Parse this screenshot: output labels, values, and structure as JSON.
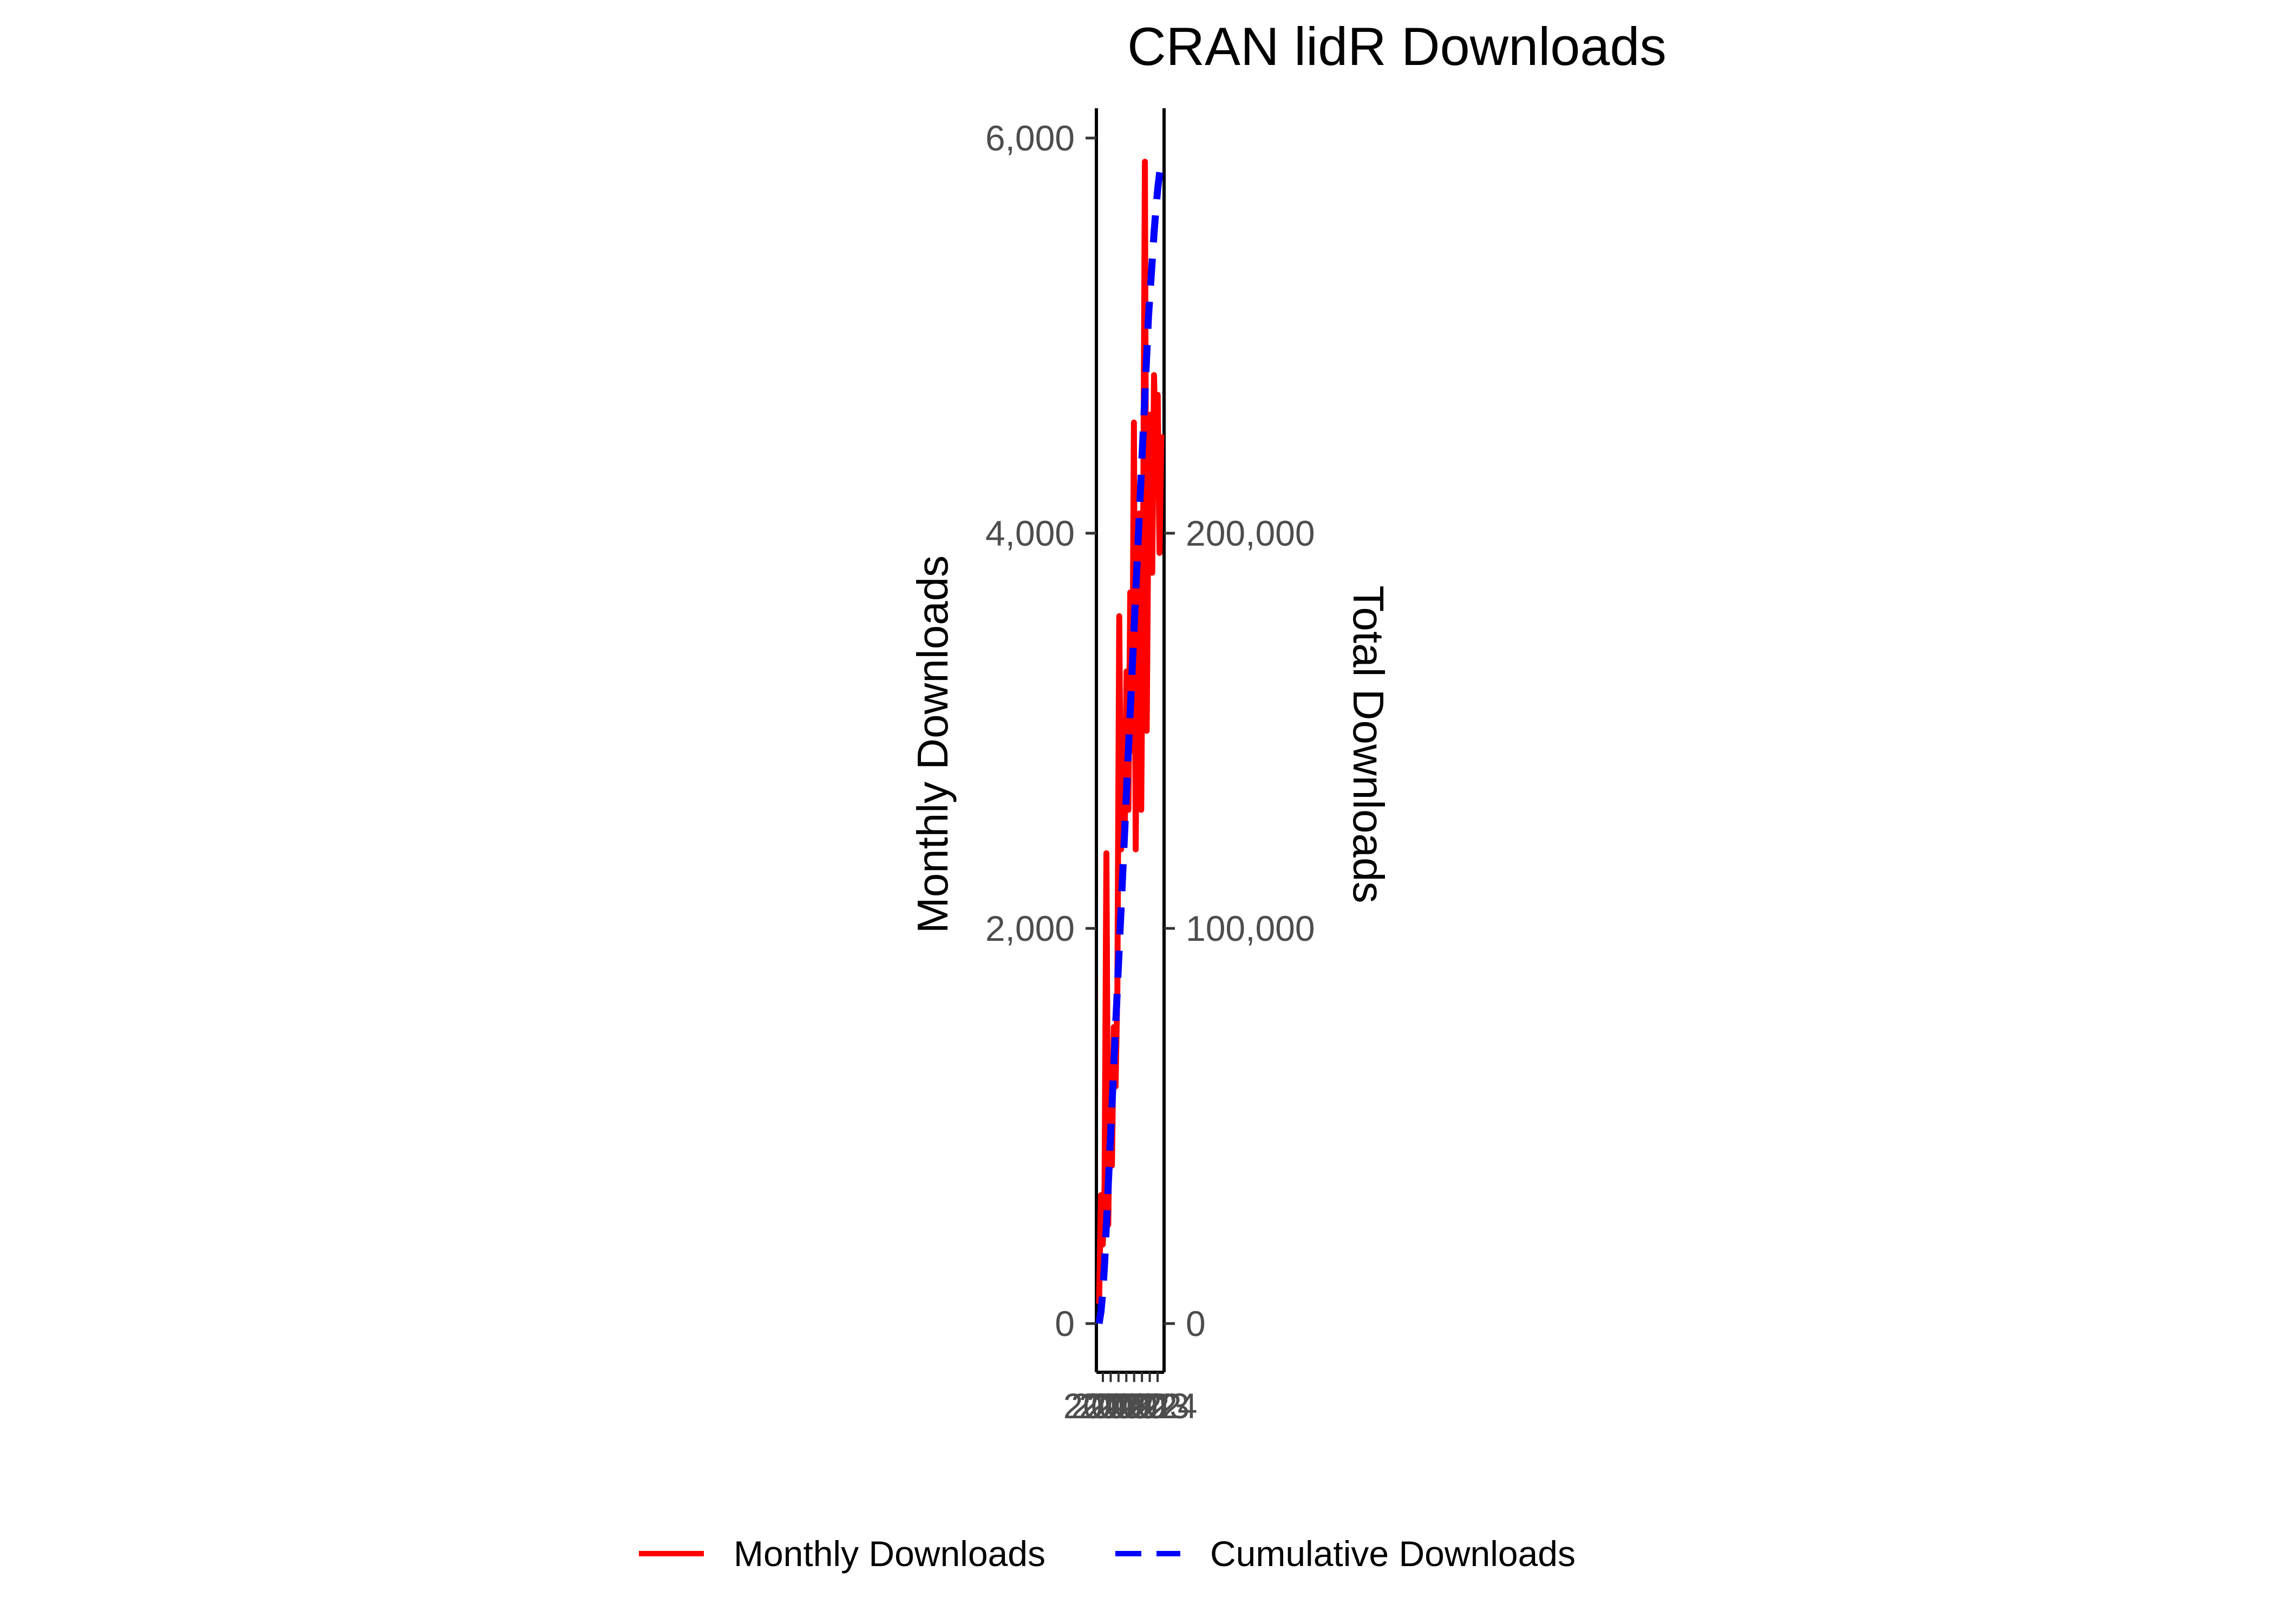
{
  "chart_data": {
    "type": "line",
    "title": "CRAN lidR Downloads",
    "ylabel_left": "Monthly Downloads",
    "ylabel_right": "Total Downloads",
    "ylim_left": [
      0,
      6000
    ],
    "ylim_right": [
      0,
      300000
    ],
    "yticks_left": [
      0,
      2000,
      4000,
      6000
    ],
    "ytick_labels_left": [
      "0",
      "2,000",
      "4,000",
      "6,000"
    ],
    "yticks_right": [
      0,
      100000,
      200000
    ],
    "ytick_labels_right": [
      "0",
      "100,000",
      "200,000"
    ],
    "x_tick_labels": [
      "2017",
      "2018",
      "2019",
      "2020",
      "2021",
      "2022",
      "2023",
      "2024"
    ],
    "grid": false,
    "legend_position": "bottom",
    "colors": {
      "monthly": "#ff0000",
      "cumulative": "#0000ff"
    },
    "series": [
      {
        "name": "Monthly Downloads",
        "axis": "left",
        "style": "solid",
        "values": [
          100,
          650,
          400,
          700,
          2380,
          500,
          1300,
          800,
          1500,
          1200,
          1700,
          3580,
          2400,
          3000,
          2500,
          3300,
          2600,
          3700,
          2900,
          4560,
          2400,
          3800,
          4100,
          2600,
          3900,
          5880,
          3000,
          4200,
          4600,
          3800,
          4800,
          4300,
          4700,
          3900,
          4500
        ]
      },
      {
        "name": "Cumulative Downloads",
        "axis": "right",
        "style": "dashed",
        "values": [
          0,
          3000,
          8000,
          15000,
          25000,
          35000,
          45000,
          55000,
          65000,
          75000,
          85000,
          95000,
          105000,
          115000,
          125000,
          135000,
          145000,
          155000,
          165000,
          175000,
          185000,
          195000,
          205000,
          215000,
          225000,
          235000,
          245000,
          255000,
          262000,
          269000,
          276000,
          282000,
          287000,
          291000,
          294000
        ]
      }
    ]
  }
}
